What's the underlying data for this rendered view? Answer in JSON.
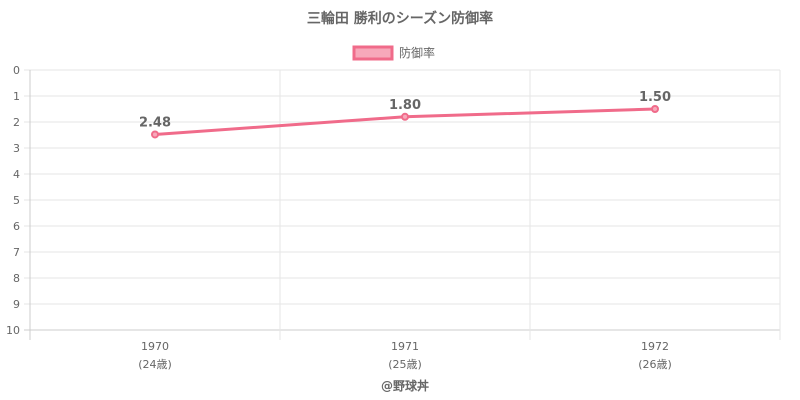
{
  "chart_data": {
    "type": "line",
    "title": "三輪田 勝利のシーズン防御率",
    "legend": {
      "position": "top",
      "entries": [
        "防御率"
      ]
    },
    "x": [
      "1970",
      "1971",
      "1972"
    ],
    "x_sublabels": [
      "(24歳)",
      "(25歳)",
      "(26歳)"
    ],
    "series": [
      {
        "name": "防御率",
        "values": [
          2.48,
          1.8,
          1.5
        ],
        "labels": [
          "2.48",
          "1.80",
          "1.50"
        ],
        "color": "#f06b8a",
        "fill": "#f7a8ba"
      }
    ],
    "ylim": [
      0,
      10
    ],
    "y_reversed": true,
    "y_ticks": [
      0,
      1,
      2,
      3,
      4,
      5,
      6,
      7,
      8,
      9,
      10
    ],
    "grid": true,
    "credit": "@野球丼"
  }
}
